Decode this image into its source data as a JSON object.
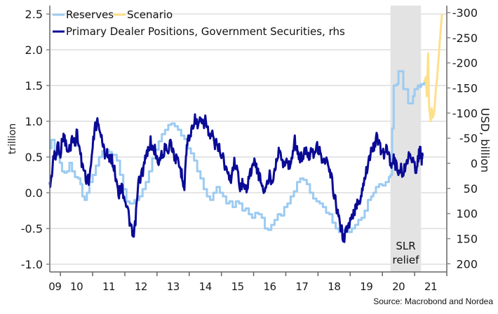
{
  "chart_data": {
    "type": "line",
    "title": "",
    "source": "Source: Macrobond and Nordea",
    "xlabel": "",
    "ylabel_left": "trillion",
    "ylabel_right": "USD, billion",
    "x_range": [
      2009.67,
      2022.0
    ],
    "x_tick_labels": [
      "09",
      "10",
      "11",
      "12",
      "13",
      "14",
      "15",
      "16",
      "17",
      "18",
      "19",
      "20",
      "21"
    ],
    "x_tick_label_years": [
      2009.83,
      2010.5,
      2011.5,
      2012.5,
      2013.5,
      2014.5,
      2015.5,
      2016.5,
      2017.5,
      2018.5,
      2019.5,
      2020.5,
      2021.5
    ],
    "x_tick_marks": [
      2010,
      2011,
      2012,
      2013,
      2014,
      2015,
      2016,
      2017,
      2018,
      2019,
      2020,
      2021,
      2022
    ],
    "y_left": {
      "range": [
        -1.1,
        2.6
      ],
      "ticks": [
        2.5,
        2.0,
        1.5,
        1.0,
        0.5,
        0.0,
        -0.5,
        -1.0
      ],
      "tick_labels": [
        "2.5",
        "2.0",
        "1.5",
        "1.0",
        "0.5",
        "0.0",
        "-0.5",
        "-1.0"
      ]
    },
    "y_right": {
      "range": [
        -305,
        215
      ],
      "inverted": true,
      "ticks": [
        -300,
        -250,
        -200,
        -150,
        -100,
        -50,
        0,
        50,
        100,
        150,
        200
      ],
      "tick_labels": [
        "-300",
        "-250",
        "-200",
        "-150",
        "-100",
        "-50",
        "0",
        "50",
        "100",
        "150",
        "200"
      ]
    },
    "grid": true,
    "legend": {
      "placement": "top-left",
      "entries": [
        {
          "name": "Reserves",
          "color": "#9ccbf2"
        },
        {
          "name": "Scenario",
          "color": "#fde08a"
        },
        {
          "name": "Primary Dealer Positions, Government Securities, rhs",
          "color": "#0a0a96"
        }
      ]
    },
    "shaded_region": {
      "label_lines": [
        "SLR",
        "relief"
      ],
      "x_from": 2020.25,
      "x_to": 2021.2,
      "color": "#e3e3e3"
    },
    "series": [
      {
        "name": "Reserves",
        "axis": "left",
        "color": "#9ccbf2",
        "step": true,
        "points": [
          [
            2009.67,
            0.62
          ],
          [
            2009.72,
            0.74
          ],
          [
            2009.8,
            0.74
          ],
          [
            2009.85,
            0.55
          ],
          [
            2009.95,
            0.5
          ],
          [
            2010.05,
            0.52
          ],
          [
            2010.1,
            0.45
          ],
          [
            2010.15,
            0.3
          ],
          [
            2010.25,
            0.28
          ],
          [
            2010.35,
            0.3
          ],
          [
            2010.45,
            0.42
          ],
          [
            2010.55,
            0.42
          ],
          [
            2010.6,
            0.3
          ],
          [
            2010.7,
            0.25
          ],
          [
            2010.8,
            0.2
          ],
          [
            2010.9,
            0.18
          ],
          [
            2011.0,
            0.18
          ],
          [
            2011.1,
            0.2
          ],
          [
            2011.2,
            0.22
          ],
          [
            2011.3,
            0.23
          ],
          [
            2011.4,
            0.2
          ],
          [
            2011.5,
            0.18
          ],
          [
            2011.6,
            0.1
          ],
          [
            2011.7,
            0.05
          ],
          [
            2011.8,
            -0.15
          ],
          [
            2011.9,
            -0.2
          ],
          [
            2012.0,
            -0.2
          ],
          [
            2012.1,
            -0.18
          ],
          [
            2012.2,
            -0.2
          ],
          [
            2012.3,
            -0.1
          ],
          [
            2012.4,
            -0.05
          ],
          [
            2012.5,
            0.05
          ],
          [
            2012.6,
            0.25
          ],
          [
            2012.7,
            0.32
          ],
          [
            2012.8,
            0.35
          ],
          [
            2012.9,
            0.4
          ],
          [
            2013.0,
            0.45
          ],
          [
            2013.1,
            0.55
          ],
          [
            2013.2,
            0.6
          ],
          [
            2013.3,
            0.62
          ],
          [
            2013.4,
            0.62
          ],
          [
            2013.5,
            0.58
          ],
          [
            2013.6,
            0.55
          ],
          [
            2013.7,
            0.5
          ],
          [
            2013.8,
            0.45
          ],
          [
            2013.9,
            0.3
          ],
          [
            2014.0,
            0.2
          ],
          [
            2014.1,
            0.1
          ],
          [
            2014.2,
            -0.05
          ],
          [
            2014.3,
            -0.1
          ],
          [
            2014.4,
            -0.12
          ],
          [
            2014.5,
            -0.15
          ],
          [
            2014.6,
            -0.1
          ],
          [
            2014.7,
            -0.08
          ],
          [
            2014.8,
            -0.05
          ],
          [
            2014.9,
            -0.02
          ],
          [
            2015.0,
            0.0
          ],
          [
            2015.1,
            0.02
          ],
          [
            2015.2,
            -0.05
          ],
          [
            2015.3,
            -0.08
          ],
          [
            2015.4,
            -0.1
          ],
          [
            2015.5,
            -0.12
          ],
          [
            2015.6,
            -0.18
          ],
          [
            2015.7,
            -0.22
          ],
          [
            2015.8,
            -0.28
          ],
          [
            2015.9,
            -0.3
          ],
          [
            2016.0,
            -0.28
          ],
          [
            2016.1,
            -0.25
          ],
          [
            2016.2,
            -0.22
          ],
          [
            2016.3,
            -0.2
          ],
          [
            2016.4,
            -0.18
          ],
          [
            2016.5,
            -0.15
          ],
          [
            2016.6,
            -0.12
          ],
          [
            2016.7,
            -0.1
          ],
          [
            2016.8,
            -0.12
          ],
          [
            2016.9,
            -0.1
          ]
        ]
      },
      {
        "name": "Primary Dealer Positions, Government Securities, rhs",
        "axis": "right",
        "color": "#0a0a96",
        "points": []
      },
      {
        "name": "Scenario",
        "axis": "left",
        "color": "#fde08a",
        "points": []
      }
    ]
  }
}
